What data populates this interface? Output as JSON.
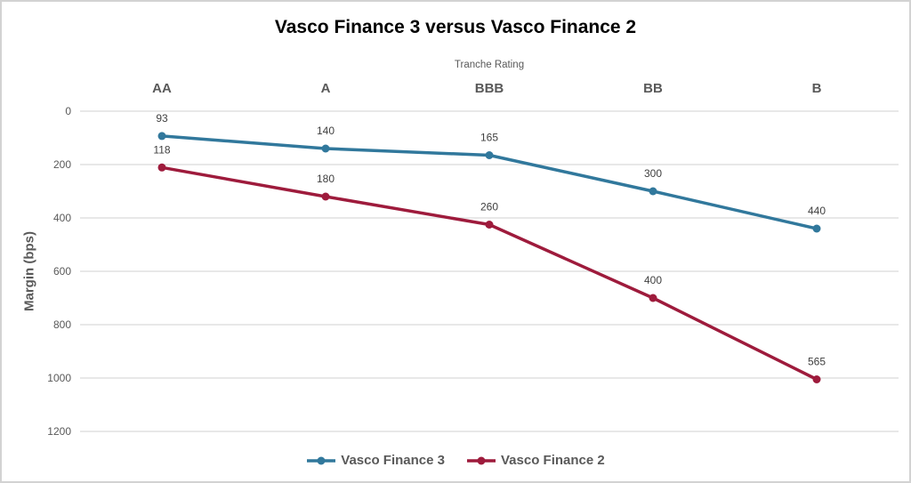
{
  "chart_data": {
    "type": "line",
    "stacked": true,
    "title": "Vasco Finance 3 versus Vasco Finance 2",
    "x_axis_title": "Tranche Rating",
    "y_axis_title": "Margin (bps)",
    "categories": [
      "AA",
      "A",
      "BBB",
      "BB",
      "B"
    ],
    "series": [
      {
        "name": "Vasco Finance 3",
        "color": "#31789C",
        "values": [
          93,
          140,
          165,
          300,
          440
        ]
      },
      {
        "name": "Vasco Finance 2",
        "color": "#9E1B3C",
        "values": [
          118,
          180,
          260,
          400,
          565
        ]
      }
    ],
    "y_ticks": [
      0,
      200,
      400,
      600,
      800,
      1000,
      1200
    ],
    "ylim": [
      0,
      1200
    ],
    "y_axis_reversed": true,
    "grid": true,
    "data_labels": true,
    "legend_position": "bottom",
    "colors": {
      "gridline": "#D9D9D9",
      "axis_text": "#595959",
      "data_label_text": "#404040",
      "title_text": "#000000"
    }
  }
}
